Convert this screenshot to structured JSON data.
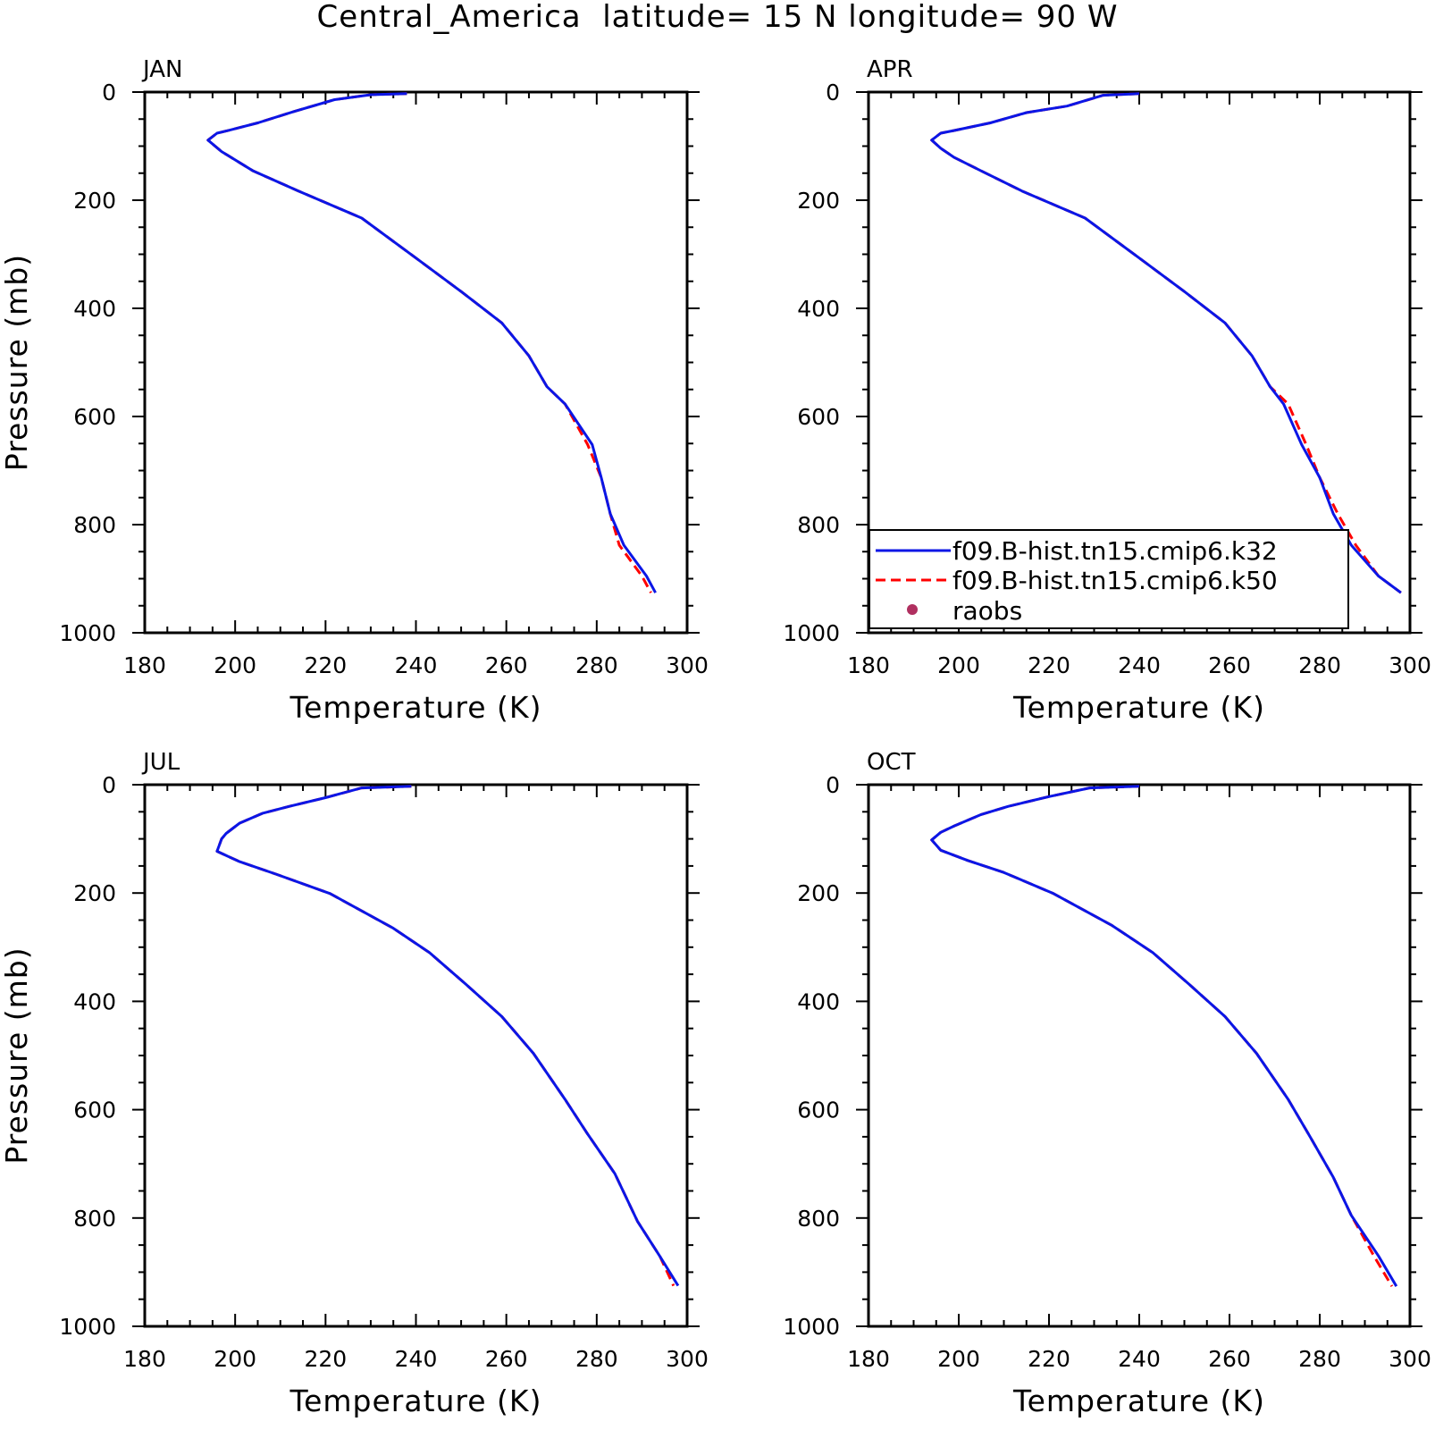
{
  "title": "Central_America  latitude= 15 N longitude= 90 W",
  "colors": {
    "k32": "#0b16e6",
    "k50": "#ff0000",
    "raobs": "#b03060"
  },
  "legend": {
    "placement": "lower-left of APR panel",
    "entries": [
      {
        "label": "f09.B-hist.tn15.cmip6.k32",
        "style": "solid",
        "color": "#0b16e6"
      },
      {
        "label": "f09.B-hist.tn15.cmip6.k50",
        "style": "dashed",
        "color": "#ff0000"
      },
      {
        "label": "raobs",
        "style": "marker",
        "color": "#b03060"
      }
    ]
  },
  "chart_data": [
    {
      "type": "line",
      "title": "JAN",
      "xlabel": "Temperature (K)",
      "ylabel": "Pressure (mb)",
      "xlim": [
        180,
        300
      ],
      "ylim": [
        1000,
        0
      ],
      "xticks": [
        "180",
        "200",
        "220",
        "240",
        "260",
        "280",
        "300"
      ],
      "yticks": [
        "0",
        "200",
        "400",
        "600",
        "800",
        "1000"
      ],
      "series": [
        {
          "name": "f09.B-hist.tn15.cmip6.k32",
          "points": [
            [
              238,
              3
            ],
            [
              230,
              5
            ],
            [
              222,
              14
            ],
            [
              213,
              36
            ],
            [
              205,
              57
            ],
            [
              198,
              72
            ],
            [
              196,
              76
            ],
            [
              194,
              89
            ],
            [
              197,
              110
            ],
            [
              204,
              146
            ],
            [
              214,
              183
            ],
            [
              228,
              233
            ],
            [
              240,
              307
            ],
            [
              250,
              369
            ],
            [
              259,
              427
            ],
            [
              265,
              488
            ],
            [
              269,
              545
            ],
            [
              273,
              577
            ],
            [
              279,
              652
            ],
            [
              281,
              713
            ],
            [
              283,
              780
            ],
            [
              286,
              838
            ],
            [
              291,
              895
            ],
            [
              293,
              926
            ]
          ]
        },
        {
          "name": "f09.B-hist.tn15.cmip6.k50",
          "points": [
            [
              238,
              3
            ],
            [
              230,
              5
            ],
            [
              222,
              14
            ],
            [
              213,
              36
            ],
            [
              205,
              57
            ],
            [
              198,
              72
            ],
            [
              196,
              76
            ],
            [
              194,
              89
            ],
            [
              197,
              110
            ],
            [
              204,
              146
            ],
            [
              214,
              183
            ],
            [
              228,
              233
            ],
            [
              240,
              307
            ],
            [
              250,
              369
            ],
            [
              259,
              427
            ],
            [
              265,
              488
            ],
            [
              269,
              545
            ],
            [
              273,
              577
            ],
            [
              278,
              652
            ],
            [
              281,
              713
            ],
            [
              283,
              780
            ],
            [
              285,
              838
            ],
            [
              290,
              895
            ],
            [
              292,
              926
            ]
          ]
        }
      ]
    },
    {
      "type": "line",
      "title": "APR",
      "xlabel": "Temperature (K)",
      "ylabel": "",
      "xlim": [
        180,
        300
      ],
      "ylim": [
        1000,
        0
      ],
      "xticks": [
        "180",
        "200",
        "220",
        "240",
        "260",
        "280",
        "300"
      ],
      "yticks": [
        "0",
        "200",
        "400",
        "600",
        "800",
        "1000"
      ],
      "series": [
        {
          "name": "f09.B-hist.tn15.cmip6.k32",
          "points": [
            [
              240,
              3
            ],
            [
              232,
              6
            ],
            [
              224,
              26
            ],
            [
              215,
              38
            ],
            [
              207,
              57
            ],
            [
              199,
              71
            ],
            [
              196,
              76
            ],
            [
              194,
              89
            ],
            [
              196,
              104
            ],
            [
              199,
              121
            ],
            [
              205,
              146
            ],
            [
              214,
              183
            ],
            [
              228,
              233
            ],
            [
              240,
              307
            ],
            [
              250,
              369
            ],
            [
              259,
              427
            ],
            [
              265,
              488
            ],
            [
              269,
              545
            ],
            [
              272,
              577
            ],
            [
              276,
              652
            ],
            [
              280,
              713
            ],
            [
              283,
              780
            ],
            [
              287,
              838
            ],
            [
              293,
              895
            ],
            [
              298,
              926
            ]
          ]
        },
        {
          "name": "f09.B-hist.tn15.cmip6.k50",
          "points": [
            [
              240,
              3
            ],
            [
              232,
              6
            ],
            [
              224,
              26
            ],
            [
              215,
              38
            ],
            [
              207,
              57
            ],
            [
              199,
              71
            ],
            [
              196,
              76
            ],
            [
              194,
              89
            ],
            [
              196,
              104
            ],
            [
              199,
              121
            ],
            [
              205,
              146
            ],
            [
              214,
              183
            ],
            [
              228,
              233
            ],
            [
              240,
              307
            ],
            [
              250,
              369
            ],
            [
              259,
              427
            ],
            [
              265,
              488
            ],
            [
              269,
              545
            ],
            [
              273,
              577
            ],
            [
              277,
              652
            ],
            [
              280,
              713
            ],
            [
              284,
              780
            ],
            [
              288,
              838
            ],
            [
              293,
              895
            ],
            [
              298,
              926
            ]
          ]
        }
      ]
    },
    {
      "type": "line",
      "title": "JUL",
      "xlabel": "Temperature (K)",
      "ylabel": "Pressure (mb)",
      "xlim": [
        180,
        300
      ],
      "ylim": [
        1000,
        0
      ],
      "xticks": [
        "180",
        "200",
        "220",
        "240",
        "260",
        "280",
        "300"
      ],
      "yticks": [
        "0",
        "200",
        "400",
        "600",
        "800",
        "1000"
      ],
      "series": [
        {
          "name": "f09.B-hist.tn15.cmip6.k32",
          "points": [
            [
              239,
              3
            ],
            [
              228,
              6
            ],
            [
              220,
              24
            ],
            [
              212,
              40
            ],
            [
              206,
              53
            ],
            [
              201,
              71
            ],
            [
              198,
              90
            ],
            [
              197,
              100
            ],
            [
              196,
              123
            ],
            [
              201,
              142
            ],
            [
              209,
              165
            ],
            [
              221,
              201
            ],
            [
              235,
              265
            ],
            [
              243,
              310
            ],
            [
              251,
              368
            ],
            [
              259,
              428
            ],
            [
              266,
              496
            ],
            [
              273,
              581
            ],
            [
              278,
              645
            ],
            [
              284,
              718
            ],
            [
              289,
              806
            ],
            [
              294,
              871
            ],
            [
              298,
              925
            ]
          ]
        },
        {
          "name": "f09.B-hist.tn15.cmip6.k50",
          "points": [
            [
              239,
              3
            ],
            [
              228,
              6
            ],
            [
              220,
              24
            ],
            [
              212,
              40
            ],
            [
              206,
              53
            ],
            [
              201,
              71
            ],
            [
              198,
              90
            ],
            [
              197,
              100
            ],
            [
              196,
              123
            ],
            [
              201,
              142
            ],
            [
              209,
              165
            ],
            [
              221,
              201
            ],
            [
              235,
              265
            ],
            [
              243,
              310
            ],
            [
              251,
              368
            ],
            [
              259,
              428
            ],
            [
              266,
              496
            ],
            [
              273,
              581
            ],
            [
              278,
              645
            ],
            [
              284,
              718
            ],
            [
              289,
              806
            ],
            [
              294,
              871
            ],
            [
              297,
              925
            ]
          ]
        }
      ]
    },
    {
      "type": "line",
      "title": "OCT",
      "xlabel": "Temperature (K)",
      "ylabel": "",
      "xlim": [
        180,
        300
      ],
      "ylim": [
        1000,
        0
      ],
      "xticks": [
        "180",
        "200",
        "220",
        "240",
        "260",
        "280",
        "300"
      ],
      "yticks": [
        "0",
        "200",
        "400",
        "600",
        "800",
        "1000"
      ],
      "series": [
        {
          "name": "f09.B-hist.tn15.cmip6.k32",
          "points": [
            [
              240,
              3
            ],
            [
              229,
              6
            ],
            [
              220,
              22
            ],
            [
              211,
              40
            ],
            [
              205,
              55
            ],
            [
              199,
              76
            ],
            [
              196,
              88
            ],
            [
              194,
              102
            ],
            [
              196,
              121
            ],
            [
              202,
              140
            ],
            [
              210,
              162
            ],
            [
              221,
              201
            ],
            [
              234,
              260
            ],
            [
              243,
              310
            ],
            [
              251,
              368
            ],
            [
              259,
              428
            ],
            [
              266,
              496
            ],
            [
              273,
              581
            ],
            [
              278,
              652
            ],
            [
              283,
              725
            ],
            [
              287,
              795
            ],
            [
              293,
              870
            ],
            [
              297,
              926
            ]
          ]
        },
        {
          "name": "f09.B-hist.tn15.cmip6.k50",
          "points": [
            [
              240,
              3
            ],
            [
              229,
              6
            ],
            [
              220,
              22
            ],
            [
              211,
              40
            ],
            [
              205,
              55
            ],
            [
              199,
              76
            ],
            [
              196,
              88
            ],
            [
              194,
              102
            ],
            [
              196,
              121
            ],
            [
              202,
              140
            ],
            [
              210,
              162
            ],
            [
              221,
              201
            ],
            [
              234,
              260
            ],
            [
              243,
              310
            ],
            [
              251,
              368
            ],
            [
              259,
              428
            ],
            [
              266,
              496
            ],
            [
              273,
              581
            ],
            [
              278,
              652
            ],
            [
              283,
              725
            ],
            [
              287,
              795
            ],
            [
              292,
              870
            ],
            [
              296,
              926
            ]
          ]
        }
      ]
    }
  ]
}
